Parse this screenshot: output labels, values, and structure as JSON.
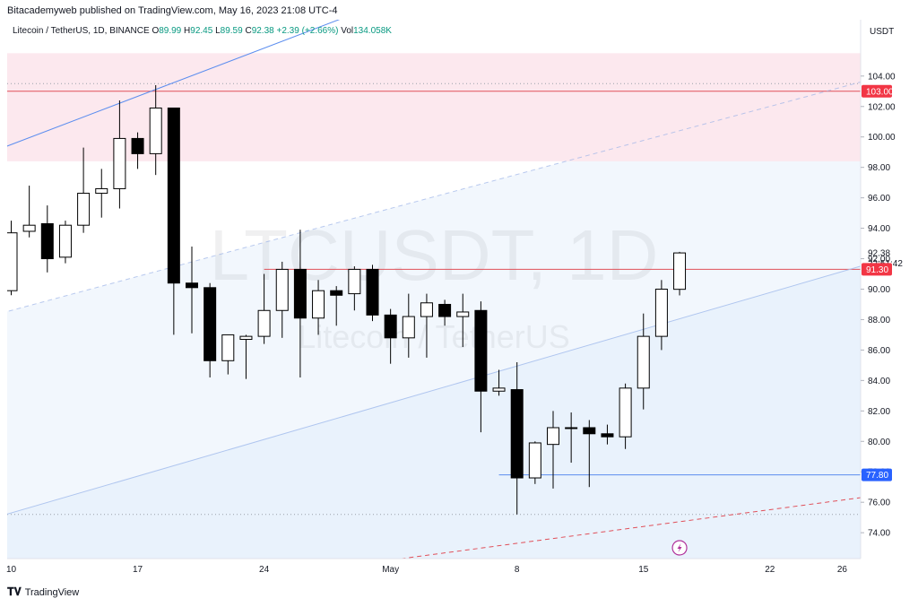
{
  "header": {
    "published": "Bitacademyweb published on TradingView.com, May 16, 2023 21:08 UTC-4"
  },
  "legend": {
    "symbol": "Litecoin / TetherUS, 1D, BINANCE",
    "o_label": "O",
    "o_value": "89.99",
    "h_label": "H",
    "h_value": "92.45",
    "l_label": "L",
    "l_value": "89.59",
    "c_label": "C",
    "c_value": "92.38",
    "change": "+2.39 (+2.66%)",
    "vol_label": "Vol",
    "vol_value": "134.058K"
  },
  "watermark": {
    "ticker": "LTCUSDT, 1D",
    "name": "Litecoin / TetherUS"
  },
  "footer": {
    "brand": "TradingView",
    "logo": "TV-logo-icon"
  },
  "colors": {
    "up_body": "#ffffff",
    "down_body": "#000000",
    "wick": "#000000",
    "resistance_zone": "#fce8ee",
    "channel_fill": "#eef4fc",
    "red_line": "#e0505a",
    "blue_line": "#5b8def",
    "price_tag_blue": "#2962ff",
    "price_tag_red": "#f23645"
  },
  "chart_data": {
    "type": "candlestick",
    "currency_label": "USDT",
    "ylim": [
      72.3,
      107.7
    ],
    "yticks": [
      "74.00",
      "76.00",
      "78.00",
      "80.00",
      "82.00",
      "84.00",
      "86.00",
      "88.00",
      "90.00",
      "92.00",
      "94.00",
      "96.00",
      "98.00",
      "100.00",
      "102.00",
      "104.00"
    ],
    "xtick_labels": [
      {
        "day": 0,
        "label": "10"
      },
      {
        "day": 7,
        "label": "17"
      },
      {
        "day": 14,
        "label": "24"
      },
      {
        "day": 21,
        "label": "May"
      },
      {
        "day": 28,
        "label": "8"
      },
      {
        "day": 35,
        "label": "15"
      },
      {
        "day": 42,
        "label": "22"
      },
      {
        "day": 46,
        "label": "26"
      }
    ],
    "candles": [
      {
        "day": 0,
        "o": 89.9,
        "h": 94.5,
        "l": 89.6,
        "c": 93.7
      },
      {
        "day": 1,
        "o": 93.8,
        "h": 96.8,
        "l": 93.4,
        "c": 94.2
      },
      {
        "day": 2,
        "o": 94.3,
        "h": 95.5,
        "l": 91.1,
        "c": 92.0
      },
      {
        "day": 3,
        "o": 92.1,
        "h": 94.5,
        "l": 91.7,
        "c": 94.2
      },
      {
        "day": 4,
        "o": 94.2,
        "h": 99.3,
        "l": 93.7,
        "c": 96.3
      },
      {
        "day": 5,
        "o": 96.3,
        "h": 97.9,
        "l": 94.7,
        "c": 96.6
      },
      {
        "day": 6,
        "o": 96.6,
        "h": 102.4,
        "l": 95.3,
        "c": 99.9
      },
      {
        "day": 7,
        "o": 99.9,
        "h": 100.3,
        "l": 97.9,
        "c": 98.9
      },
      {
        "day": 8,
        "o": 98.9,
        "h": 103.4,
        "l": 97.5,
        "c": 101.9
      },
      {
        "day": 9,
        "o": 101.9,
        "h": 101.9,
        "l": 87.0,
        "c": 90.4
      },
      {
        "day": 10,
        "o": 90.4,
        "h": 92.8,
        "l": 87.1,
        "c": 90.1
      },
      {
        "day": 11,
        "o": 90.1,
        "h": 90.4,
        "l": 84.2,
        "c": 85.3
      },
      {
        "day": 12,
        "o": 85.3,
        "h": 87.0,
        "l": 84.4,
        "c": 87.0
      },
      {
        "day": 13,
        "o": 86.7,
        "h": 87.0,
        "l": 84.1,
        "c": 86.9
      },
      {
        "day": 14,
        "o": 86.9,
        "h": 91.0,
        "l": 86.4,
        "c": 88.6
      },
      {
        "day": 15,
        "o": 88.6,
        "h": 91.8,
        "l": 86.8,
        "c": 91.3
      },
      {
        "day": 16,
        "o": 91.3,
        "h": 93.9,
        "l": 84.2,
        "c": 88.1
      },
      {
        "day": 17,
        "o": 88.1,
        "h": 90.6,
        "l": 87.0,
        "c": 89.9
      },
      {
        "day": 18,
        "o": 89.9,
        "h": 90.2,
        "l": 87.6,
        "c": 89.6
      },
      {
        "day": 19,
        "o": 89.7,
        "h": 91.5,
        "l": 88.6,
        "c": 91.3
      },
      {
        "day": 20,
        "o": 91.3,
        "h": 91.6,
        "l": 87.9,
        "c": 88.3
      },
      {
        "day": 21,
        "o": 88.3,
        "h": 88.7,
        "l": 85.1,
        "c": 86.8
      },
      {
        "day": 22,
        "o": 86.8,
        "h": 89.7,
        "l": 85.5,
        "c": 88.2
      },
      {
        "day": 23,
        "o": 88.2,
        "h": 89.7,
        "l": 85.5,
        "c": 89.1
      },
      {
        "day": 24,
        "o": 89.0,
        "h": 89.3,
        "l": 87.6,
        "c": 88.2
      },
      {
        "day": 25,
        "o": 88.2,
        "h": 89.7,
        "l": 86.2,
        "c": 88.5
      },
      {
        "day": 26,
        "o": 88.6,
        "h": 89.2,
        "l": 80.6,
        "c": 83.3
      },
      {
        "day": 27,
        "o": 83.3,
        "h": 84.7,
        "l": 83.0,
        "c": 83.5
      },
      {
        "day": 28,
        "o": 83.4,
        "h": 85.2,
        "l": 75.2,
        "c": 77.6
      },
      {
        "day": 29,
        "o": 77.6,
        "h": 80.0,
        "l": 77.2,
        "c": 79.9
      },
      {
        "day": 30,
        "o": 79.8,
        "h": 82.0,
        "l": 76.9,
        "c": 80.9
      },
      {
        "day": 31,
        "o": 80.9,
        "h": 81.9,
        "l": 78.6,
        "c": 80.9
      },
      {
        "day": 32,
        "o": 80.9,
        "h": 81.4,
        "l": 77.0,
        "c": 80.5
      },
      {
        "day": 33,
        "o": 80.5,
        "h": 81.1,
        "l": 79.8,
        "c": 80.3
      },
      {
        "day": 34,
        "o": 80.3,
        "h": 83.8,
        "l": 79.5,
        "c": 83.5
      },
      {
        "day": 35,
        "o": 83.5,
        "h": 88.4,
        "l": 82.1,
        "c": 86.9
      },
      {
        "day": 36,
        "o": 86.9,
        "h": 90.6,
        "l": 86.0,
        "c": 90.0
      },
      {
        "day": 37,
        "o": 89.99,
        "h": 92.45,
        "l": 89.59,
        "c": 92.38
      }
    ],
    "price_labels": [
      {
        "value": "103.00",
        "price": 103.0,
        "color": "#f23645"
      },
      {
        "value": "92.38",
        "price": 92.38,
        "countdown": "22:51:42",
        "color": "plain"
      },
      {
        "value": "91.30",
        "price": 91.3,
        "color": "#f23645"
      },
      {
        "value": "77.80",
        "price": 77.8,
        "color": "#2962ff"
      }
    ],
    "levels": [
      {
        "name": "resistance-line",
        "price": 103.0
      },
      {
        "name": "horizontal-level-91",
        "price": 91.3,
        "from_day": 14
      },
      {
        "name": "support-level-77",
        "price": 77.8,
        "from_day": 27
      },
      {
        "name": "dotted-high",
        "price": 103.5
      },
      {
        "name": "dotted-low",
        "price": 75.2
      }
    ],
    "zone": {
      "top": 105.5,
      "bottom": 98.4
    },
    "trendlines": [
      {
        "name": "upper-channel-line",
        "p1": [
          0,
          99.5
        ],
        "p2": [
          21,
          109.0
        ],
        "style": "solid"
      },
      {
        "name": "upper-channel-extension",
        "p1": [
          0,
          88.6
        ],
        "p2": [
          47,
          103.6
        ],
        "style": "dashed"
      },
      {
        "name": "lower-channel-line",
        "p1": [
          0,
          75.3
        ],
        "p2": [
          47,
          91.5
        ],
        "style": "solid-light"
      },
      {
        "name": "red-dashed-line",
        "p1": [
          21,
          72.2
        ],
        "p2": [
          47,
          76.3
        ],
        "style": "red-dashed"
      }
    ]
  }
}
